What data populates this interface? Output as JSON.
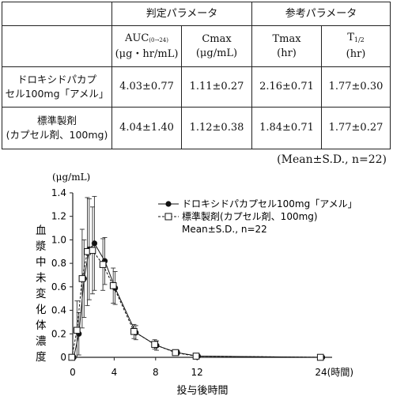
{
  "table": {
    "group_headers": {
      "judgment": "判定パラメータ",
      "reference": "参考パラメータ"
    },
    "columns": [
      {
        "main": "AUC",
        "sub": "(0→24)",
        "unit": "(μg・hr/mL)"
      },
      {
        "main": "Cmax",
        "sub": "",
        "unit": "(μg/mL)"
      },
      {
        "main": "Tmax",
        "sub": "",
        "unit": "(hr)"
      },
      {
        "main": "T",
        "sub": "1/2",
        "unit": "(hr)"
      }
    ],
    "rows": [
      {
        "label_line1": "ドロキシドパカプ",
        "label_line2": "セル100mg「アメル」",
        "values": [
          "4.03±0.77",
          "1.11±0.27",
          "2.16±0.71",
          "1.77±0.30"
        ]
      },
      {
        "label_line1": "標準製剤",
        "label_line2": "(カプセル剤、100mg)",
        "values": [
          "4.04±1.40",
          "1.12±0.38",
          "1.84±0.71",
          "1.77±0.27"
        ]
      }
    ]
  },
  "footnote": "(Mean±S.D., n=22)",
  "chart_data": {
    "type": "line",
    "y_unit": "(μg/mL)",
    "ylabel": "血漿中未変化体濃度",
    "xlabel": "投与後時間",
    "x_end_label": "24(時間)",
    "x_ticks": [
      0,
      4,
      8,
      12
    ],
    "y_ticks": [
      "0",
      "0.2",
      "0.4",
      "0.6",
      "0.8",
      "1.0",
      "1.2",
      "1.4"
    ],
    "xlim": [
      0,
      24
    ],
    "ylim": [
      0,
      1.4
    ],
    "legend": {
      "line1": "ドロキシドパカプセル100mg「アメル」",
      "line2": "標準製剤(カプセル剤、100mg)",
      "line3": "Mean±S.D., n=22"
    },
    "series": [
      {
        "name": "ドロキシドパカプセル100mg「アメル」",
        "marker": "filled-circle",
        "dash": "solid",
        "x": [
          0,
          0.5,
          1,
          1.5,
          2,
          3,
          4,
          6,
          8,
          10,
          12,
          24
        ],
        "y": [
          0,
          0.2,
          0.67,
          0.92,
          0.97,
          0.82,
          0.59,
          0.21,
          0.1,
          0.04,
          0.01,
          0
        ],
        "sd": [
          0,
          0.18,
          0.33,
          0.43,
          0.4,
          0.2,
          0.14,
          0.06,
          0.04,
          0.02,
          0.01,
          0
        ]
      },
      {
        "name": "標準製剤(カプセル剤、100mg)",
        "marker": "open-square",
        "dash": "dashed",
        "x": [
          0,
          0.5,
          1,
          1.5,
          2,
          3,
          4,
          6,
          8,
          10,
          12,
          24
        ],
        "y": [
          0,
          0.23,
          0.67,
          0.9,
          0.91,
          0.79,
          0.61,
          0.22,
          0.11,
          0.04,
          0.01,
          0
        ],
        "sd": [
          0,
          0.25,
          0.42,
          0.46,
          0.37,
          0.22,
          0.15,
          0.06,
          0.04,
          0.02,
          0.01,
          0
        ]
      }
    ]
  }
}
